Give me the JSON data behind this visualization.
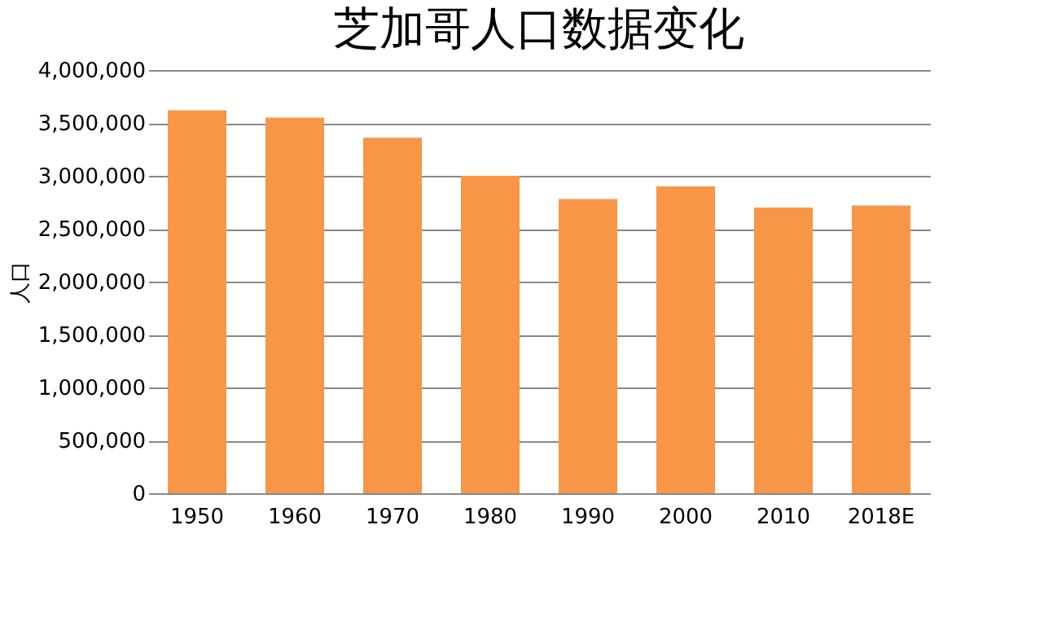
{
  "chart_data": {
    "type": "bar",
    "title": "芝加哥人口数据变化",
    "ylabel": "人口",
    "categories": [
      "1950",
      "1960",
      "1970",
      "1980",
      "1990",
      "2000",
      "2010",
      "2018E"
    ],
    "values": [
      3620000,
      3550000,
      3360000,
      3000000,
      2780000,
      2900000,
      2700000,
      2720000
    ],
    "color": "#f79646",
    "ylim": [
      0,
      4000000
    ],
    "yticks": [
      0,
      {
        "value": 500000,
        "label": "500,000"
      },
      {
        "value": 1000000,
        "label": "1,000,000"
      },
      {
        "value": 1500000,
        "label": "1,500,000"
      },
      {
        "value": 2000000,
        "label": "2,000,000"
      },
      {
        "value": 2500000,
        "label": "2,500,000"
      },
      {
        "value": 3000000,
        "label": "3,000,000"
      },
      {
        "value": 3500000,
        "label": "3,500,000"
      },
      {
        "value": 4000000,
        "label": "4,000,000"
      }
    ],
    "grid": "y"
  }
}
